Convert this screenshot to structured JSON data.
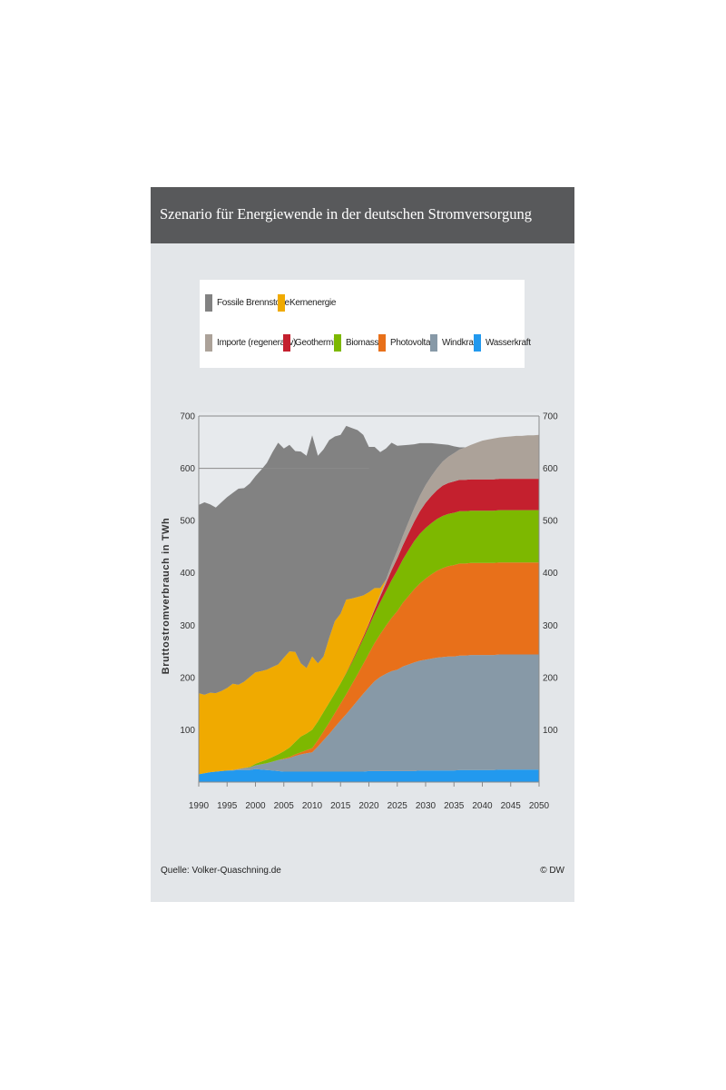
{
  "title": "Szenario für Energiewende in der deutschen Stromversorgung",
  "source": "Quelle: Volker-Quaschning.de",
  "credit": "© DW",
  "chart_data": {
    "type": "area",
    "stacked": true,
    "title": "Szenario für Energiewende in der deutschen Stromversorgung",
    "ylabel": "Bruttostromverbrauch in TWh",
    "xlabel": "",
    "xlim": [
      1990,
      2050
    ],
    "ylim": [
      0,
      700
    ],
    "x_ticks": [
      "1990",
      "1995",
      "2000",
      "2005",
      "2010",
      "2015",
      "2020",
      "2025",
      "2030",
      "2035",
      "2040",
      "2045",
      "2050"
    ],
    "y_ticks": [
      "100",
      "200",
      "300",
      "400",
      "500",
      "600",
      "700"
    ],
    "reference_line": 600,
    "grid": false,
    "legend_position": "top",
    "x": [
      1990,
      1991,
      1992,
      1993,
      1994,
      1995,
      1996,
      1997,
      1998,
      1999,
      2000,
      2001,
      2002,
      2003,
      2004,
      2005,
      2006,
      2007,
      2008,
      2009,
      2010,
      2011,
      2012,
      2013,
      2014,
      2015,
      2016,
      2017,
      2018,
      2019,
      2020,
      2021,
      2022,
      2023,
      2024,
      2025,
      2026,
      2027,
      2028,
      2029,
      2030,
      2031,
      2032,
      2033,
      2034,
      2035,
      2036,
      2037,
      2038,
      2039,
      2040,
      2041,
      2042,
      2043,
      2044,
      2045,
      2046,
      2047,
      2048,
      2049,
      2050
    ],
    "series": [
      {
        "name": "Wasserkraft",
        "color": "#2299ee",
        "values": [
          15,
          17,
          19,
          20,
          21,
          22,
          22,
          23,
          23,
          23,
          25,
          24,
          23,
          22,
          21,
          20,
          20,
          20,
          20,
          20,
          20,
          20,
          20,
          20,
          20,
          20,
          20,
          20,
          20,
          20,
          21,
          21,
          21,
          21,
          21,
          21,
          21,
          21,
          21,
          22,
          22,
          22,
          22,
          22,
          22,
          22,
          23,
          23,
          23,
          23,
          23,
          23,
          23,
          24,
          24,
          24,
          24,
          24,
          24,
          24,
          24
        ]
      },
      {
        "name": "Windkraft",
        "color": "#8799a7",
        "values": [
          0,
          0,
          0,
          0,
          0,
          0,
          1,
          2,
          4,
          5,
          7,
          10,
          13,
          17,
          21,
          24,
          26,
          30,
          33,
          35,
          37,
          48,
          60,
          72,
          85,
          98,
          110,
          123,
          136,
          149,
          160,
          172,
          180,
          186,
          191,
          194,
          200,
          204,
          208,
          210,
          212,
          214,
          216,
          217,
          218,
          218,
          219,
          219,
          220,
          220,
          220,
          220,
          220,
          220,
          220,
          220,
          220,
          220,
          220,
          220,
          220
        ]
      },
      {
        "name": "Photovoltaik",
        "color": "#e8701a",
        "values": [
          0,
          0,
          0,
          0,
          0,
          0,
          0,
          0,
          0,
          0,
          0,
          0,
          0,
          0,
          0,
          1,
          2,
          3,
          4,
          6,
          8,
          12,
          17,
          22,
          27,
          32,
          38,
          44,
          50,
          57,
          65,
          73,
          82,
          92,
          102,
          112,
          122,
          131,
          140,
          148,
          155,
          161,
          166,
          170,
          173,
          175,
          176,
          176,
          176,
          176,
          176,
          176,
          176,
          176,
          176,
          176,
          176,
          176,
          176,
          176,
          176
        ]
      },
      {
        "name": "Biomasse",
        "color": "#7db800",
        "values": [
          0,
          0,
          0,
          0,
          0,
          0,
          0,
          0,
          0,
          1,
          3,
          5,
          7,
          9,
          11,
          14,
          18,
          24,
          30,
          32,
          35,
          36,
          37,
          38,
          38,
          39,
          40,
          42,
          45,
          48,
          52,
          56,
          61,
          66,
          72,
          78,
          83,
          88,
          92,
          95,
          97,
          98,
          99,
          100,
          100,
          100,
          100,
          100,
          100,
          100,
          100,
          100,
          100,
          100,
          100,
          100,
          100,
          100,
          100,
          100,
          100
        ]
      },
      {
        "name": "Geothermie",
        "color": "#c4202e",
        "values": [
          0,
          0,
          0,
          0,
          0,
          0,
          0,
          0,
          0,
          0,
          0,
          0,
          0,
          0,
          0,
          0,
          0,
          0,
          0,
          0,
          0,
          0,
          0,
          0,
          0,
          0,
          1,
          2,
          3,
          4,
          5,
          8,
          11,
          15,
          19,
          23,
          27,
          32,
          37,
          43,
          48,
          52,
          55,
          58,
          59,
          60,
          60,
          60,
          60,
          60,
          60,
          60,
          60,
          60,
          60,
          60,
          60,
          60,
          60,
          60,
          60
        ]
      },
      {
        "name": "Importe (regenerativ)",
        "color": "#aca299",
        "values": [
          0,
          0,
          0,
          0,
          0,
          0,
          0,
          0,
          0,
          0,
          0,
          0,
          0,
          0,
          0,
          0,
          0,
          0,
          0,
          0,
          0,
          0,
          0,
          0,
          0,
          0,
          0,
          0,
          0,
          0,
          1,
          2,
          4,
          7,
          11,
          15,
          18,
          22,
          26,
          30,
          34,
          38,
          42,
          46,
          50,
          54,
          58,
          62,
          66,
          70,
          74,
          76,
          78,
          79,
          80,
          81,
          82,
          82,
          83,
          83,
          84
        ]
      },
      {
        "name": "Kernenergie",
        "color": "#f0aa00",
        "values": [
          155,
          150,
          152,
          150,
          153,
          158,
          165,
          161,
          165,
          172,
          175,
          173,
          172,
          172,
          172,
          179,
          184,
          172,
          140,
          125,
          140,
          111,
          106,
          124,
          138,
          133,
          140,
          120,
          100,
          79,
          59,
          39,
          12,
          0,
          0,
          0,
          0,
          0,
          0,
          0,
          0,
          0,
          0,
          0,
          0,
          0,
          0,
          0,
          0,
          0,
          0,
          0,
          0,
          0,
          0,
          0,
          0,
          0,
          0,
          0,
          0
        ]
      },
      {
        "name": "Fossile Brennstoffe",
        "color": "#828282",
        "values": [
          360,
          368,
          360,
          355,
          361,
          365,
          365,
          375,
          370,
          370,
          375,
          385,
          395,
          411,
          424,
          400,
          395,
          384,
          405,
          406,
          423,
          397,
          396,
          378,
          353,
          342,
          332,
          326,
          319,
          307,
          278,
          270,
          260,
          251,
          233,
          200,
          173,
          147,
          122,
          100,
          80,
          63,
          47,
          33,
          23,
          13,
          4,
          0,
          0,
          0,
          0,
          0,
          0,
          0,
          0,
          0,
          0,
          0,
          0,
          0,
          0
        ]
      }
    ]
  }
}
